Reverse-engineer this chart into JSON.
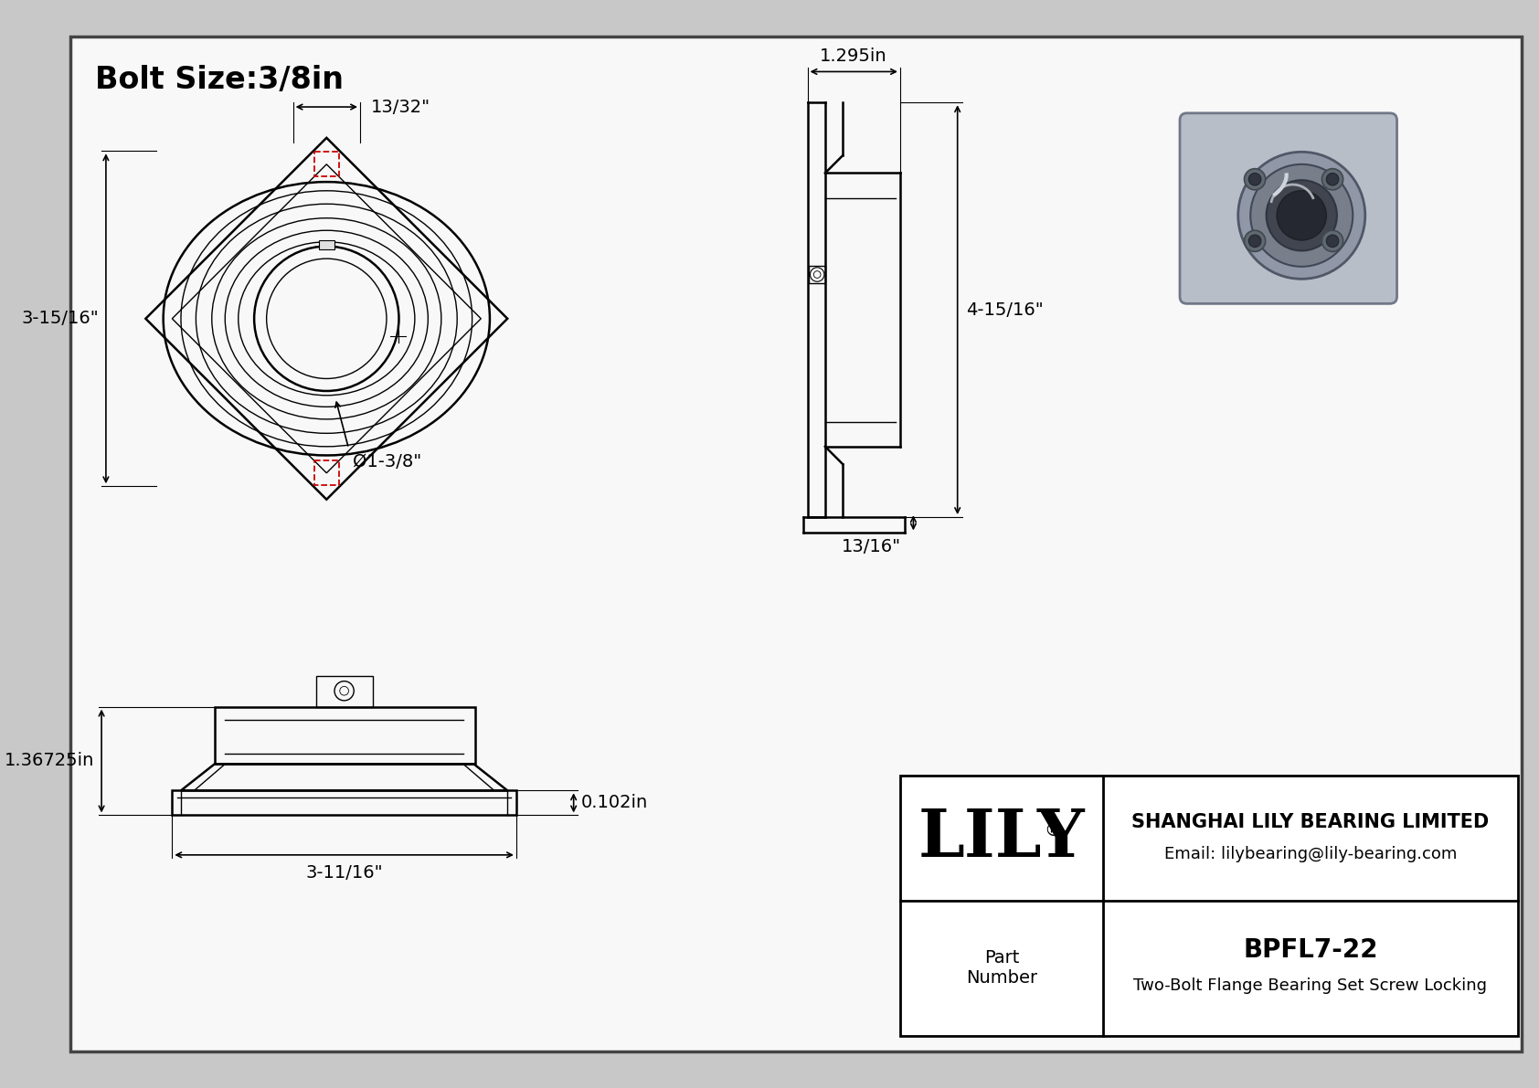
{
  "title": "Bolt Size:3/8in",
  "bg_color": "#ffffff",
  "line_color": "#000000",
  "red_dash_color": "#cc0000",
  "front_view": {
    "label_width": "13/32\"",
    "label_height": "3-15/16\"",
    "label_bore": "Ø1-3/8\""
  },
  "side_view": {
    "label_width": "1.295in",
    "label_height": "4-15/16\"",
    "label_base": "13/16\""
  },
  "bottom_view": {
    "label_height": "1.36725in",
    "label_width": "3-11/16\"",
    "label_protrude": "0.102in"
  },
  "title_block": {
    "company": "SHANGHAI LILY BEARING LIMITED",
    "email": "Email: lilybearing@lily-bearing.com",
    "part_label": "Part\nNumber",
    "part_number": "BPFL7-22",
    "description": "Two-Bolt Flange Bearing Set Screw Locking",
    "lily_text": "LILY"
  }
}
